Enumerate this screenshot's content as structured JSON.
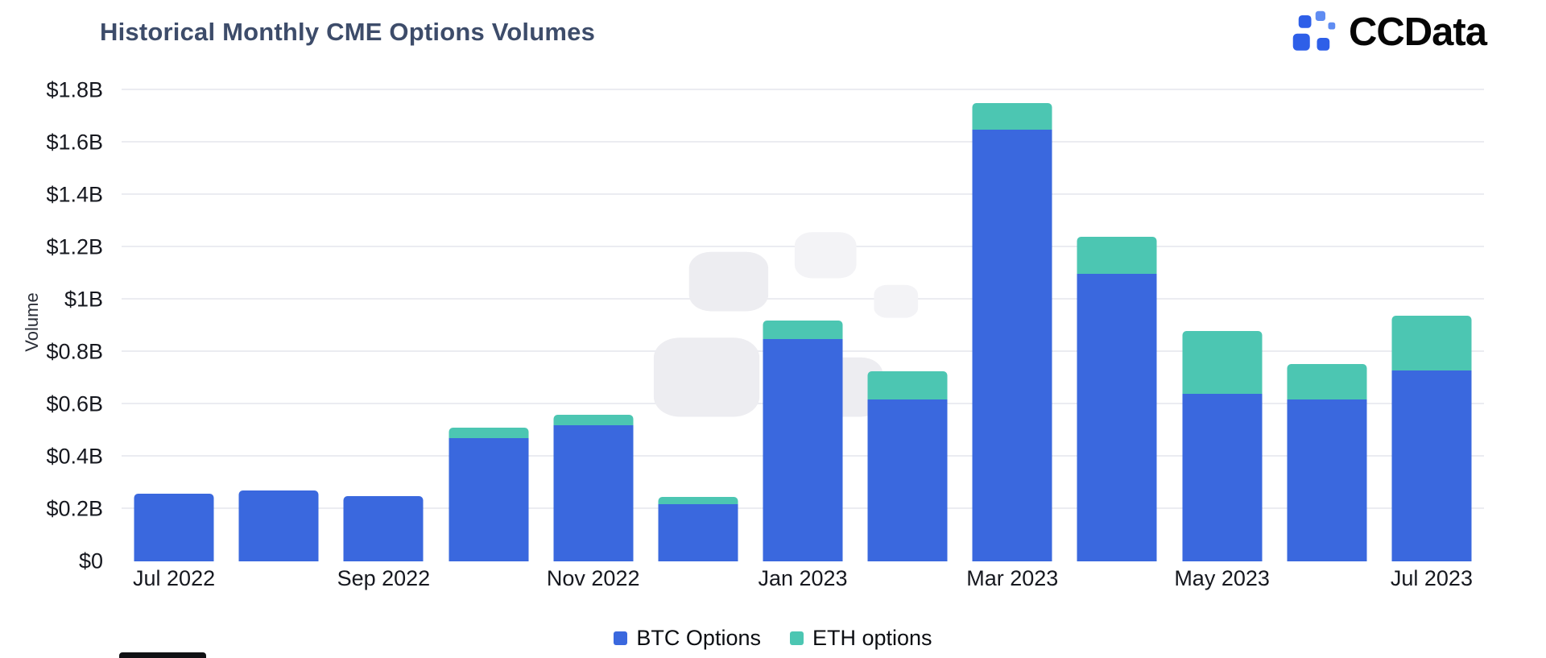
{
  "logo": {
    "text": "CCData"
  },
  "chart_data": {
    "type": "bar",
    "stacked": true,
    "title": "Historical Monthly CME Options Volumes",
    "xlabel": "",
    "ylabel": "Volume",
    "units": "USD billions",
    "categories": [
      "Jul 2022",
      "Aug 2022",
      "Sep 2022",
      "Oct 2022",
      "Nov 2022",
      "Dec 2022",
      "Jan 2023",
      "Feb 2023",
      "Mar 2023",
      "Apr 2023",
      "May 2023",
      "Jun 2023",
      "Jul 2023"
    ],
    "x_tick_labels": [
      "Jul 2022",
      "Sep 2022",
      "Nov 2022",
      "Jan 2023",
      "Mar 2023",
      "May 2023",
      "Jul 2023"
    ],
    "x_tick_indices": [
      0,
      2,
      4,
      6,
      8,
      10,
      12
    ],
    "series": [
      {
        "name": "BTC Options",
        "color": "#3a68de",
        "values": [
          0.26,
          0.27,
          0.25,
          0.47,
          0.52,
          0.22,
          0.85,
          0.62,
          1.65,
          1.1,
          0.64,
          0.62,
          0.73
        ]
      },
      {
        "name": "ETH options",
        "color": "#4cc6b2",
        "values": [
          0,
          0,
          0,
          0.04,
          0.04,
          0.025,
          0.07,
          0.105,
          0.1,
          0.14,
          0.24,
          0.135,
          0.21
        ]
      }
    ],
    "ylim": [
      0,
      1.8
    ],
    "y_ticks": [
      0,
      0.2,
      0.4,
      0.6,
      0.8,
      1.0,
      1.2,
      1.4,
      1.6,
      1.8
    ],
    "y_tick_labels": [
      "$0",
      "$0.2B",
      "$0.4B",
      "$0.6B",
      "$0.8B",
      "$1B",
      "$1.2B",
      "$1.4B",
      "$1.6B",
      "$1.8B"
    ],
    "grid": true,
    "legend_position": "bottom"
  },
  "colors": {
    "btc": "#3a68de",
    "eth": "#4cc6b2",
    "title": "#3d4c6a",
    "grid": "#ebecf1",
    "tick_label": "#16181f",
    "logo_blue": "#2e5fe8",
    "logo_light_blue": "#5f8cf2",
    "watermark_gray": "#ededf1"
  }
}
